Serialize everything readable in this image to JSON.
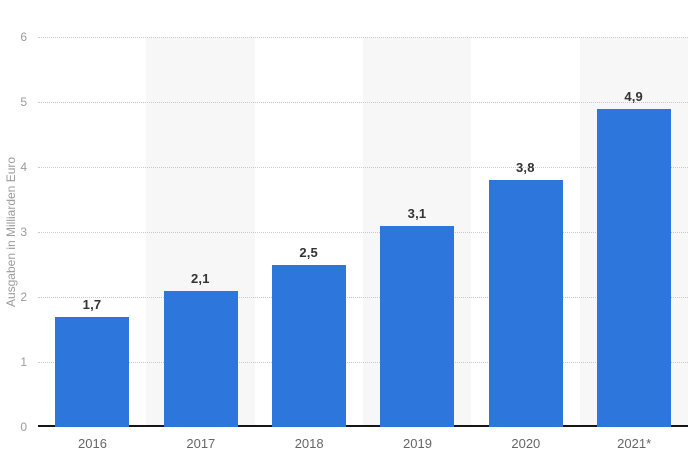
{
  "chart_data": {
    "type": "bar",
    "categories": [
      "2016",
      "2017",
      "2018",
      "2019",
      "2020",
      "2021*"
    ],
    "values": [
      1.7,
      2.1,
      2.5,
      3.1,
      3.8,
      4.9
    ],
    "value_labels": [
      "1,7",
      "2,1",
      "2,5",
      "3,1",
      "3,8",
      "4,9"
    ],
    "title": "",
    "xlabel": "",
    "ylabel": "Ausgaben in Milliarden Euro",
    "ylim": [
      0,
      6
    ],
    "ytick_labels": [
      "0",
      "1",
      "2",
      "3",
      "4",
      "5",
      "6"
    ],
    "grid": "horizontal-dotted",
    "legend": "none",
    "plot_bands": "alternating columns, odd columns shaded",
    "colors": {
      "bar": "#2d77dc",
      "plot_band": "#f7f7f7",
      "gridline": "#c9c9c9",
      "baseline": "#161616",
      "ytick_label": "#9b9b9b",
      "axis_title": "#9b9b9b",
      "category_label": "#666666",
      "value_label": "#333333"
    }
  }
}
